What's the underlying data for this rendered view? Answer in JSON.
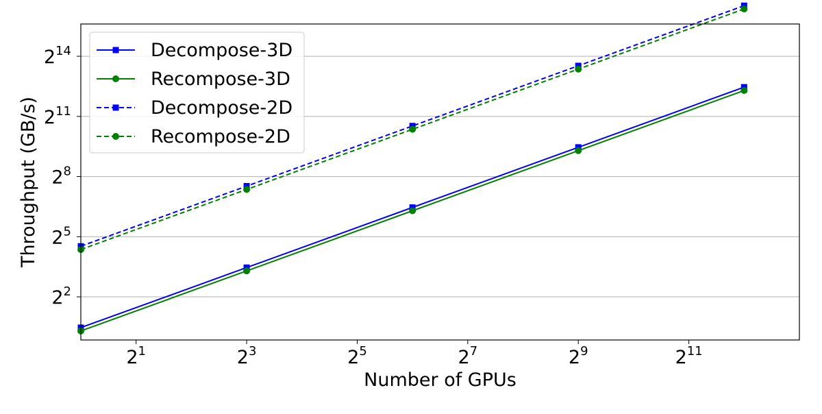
{
  "chart_data": {
    "type": "line",
    "title": "",
    "xlabel": "Number of GPUs",
    "ylabel": "Throughput (GB/s)",
    "x_scale": "log2",
    "y_scale": "log2",
    "xlim": [
      1,
      8192
    ],
    "ylim": [
      0.9,
      50000
    ],
    "x_ticks": [
      {
        "value": 2,
        "base": "2",
        "exp": "1"
      },
      {
        "value": 8,
        "base": "2",
        "exp": "3"
      },
      {
        "value": 32,
        "base": "2",
        "exp": "5"
      },
      {
        "value": 128,
        "base": "2",
        "exp": "7"
      },
      {
        "value": 512,
        "base": "2",
        "exp": "9"
      },
      {
        "value": 2048,
        "base": "2",
        "exp": "11"
      }
    ],
    "y_ticks": [
      {
        "value": 4,
        "base": "2",
        "exp": "2"
      },
      {
        "value": 32,
        "base": "2",
        "exp": "5"
      },
      {
        "value": 256,
        "base": "2",
        "exp": "8"
      },
      {
        "value": 2048,
        "base": "2",
        "exp": "11"
      },
      {
        "value": 16384,
        "base": "2",
        "exp": "14"
      }
    ],
    "grid": "horizontal",
    "legend_position": "top-left",
    "x": [
      1,
      8,
      64,
      512,
      4096
    ],
    "series": [
      {
        "name": "Decompose-3D",
        "values": [
          1.38,
          11.0,
          88.0,
          704.0,
          5632.0
        ],
        "color": "#0000ff",
        "marker": "square",
        "dash": "solid"
      },
      {
        "name": "Recompose-3D",
        "values": [
          1.23,
          9.8,
          78.4,
          627.0,
          5018.0
        ],
        "color": "#008000",
        "marker": "circle",
        "dash": "solid"
      },
      {
        "name": "Decompose-2D",
        "values": [
          23.0,
          184.0,
          1472.0,
          11776.0,
          94208.0
        ],
        "color": "#0000ff",
        "marker": "square",
        "dash": "dashed"
      },
      {
        "name": "Recompose-2D",
        "values": [
          20.5,
          164.0,
          1312.0,
          10496.0,
          83968.0
        ],
        "color": "#008000",
        "marker": "circle",
        "dash": "dashed"
      }
    ]
  }
}
